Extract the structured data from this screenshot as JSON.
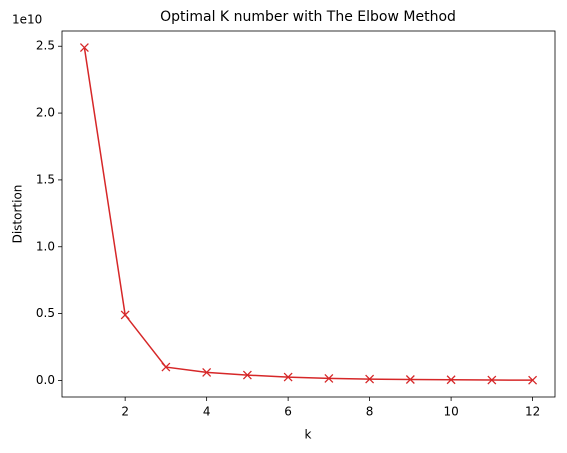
{
  "chart_data": {
    "type": "line",
    "title": "Optimal K number with The Elbow Method",
    "x_label": "k",
    "y_label": "Distortion",
    "y_offset_label": "1e10",
    "x": [
      1,
      2,
      3,
      4,
      5,
      6,
      7,
      8,
      9,
      10,
      11,
      12
    ],
    "series": [
      {
        "name": "Distortion",
        "color": "#d62728",
        "marker": "x",
        "values": [
          2.49,
          0.49,
          0.1,
          0.06,
          0.04,
          0.025,
          0.015,
          0.01,
          0.007,
          0.005,
          0.003,
          0.002
        ]
      }
    ],
    "xlim": [
      0.45,
      12.55
    ],
    "xticks": [
      2,
      4,
      6,
      8,
      10,
      12
    ],
    "ylim": [
      -0.124,
      2.614
    ],
    "yticks": [
      {
        "value": 0,
        "label": "0.0"
      },
      {
        "value": 0.5,
        "label": "0.5"
      },
      {
        "value": 1,
        "label": "1.0"
      },
      {
        "value": 1.5,
        "label": "1.5"
      },
      {
        "value": 2,
        "label": "2.0"
      },
      {
        "value": 2.5,
        "label": "2.5"
      }
    ],
    "grid": false
  }
}
